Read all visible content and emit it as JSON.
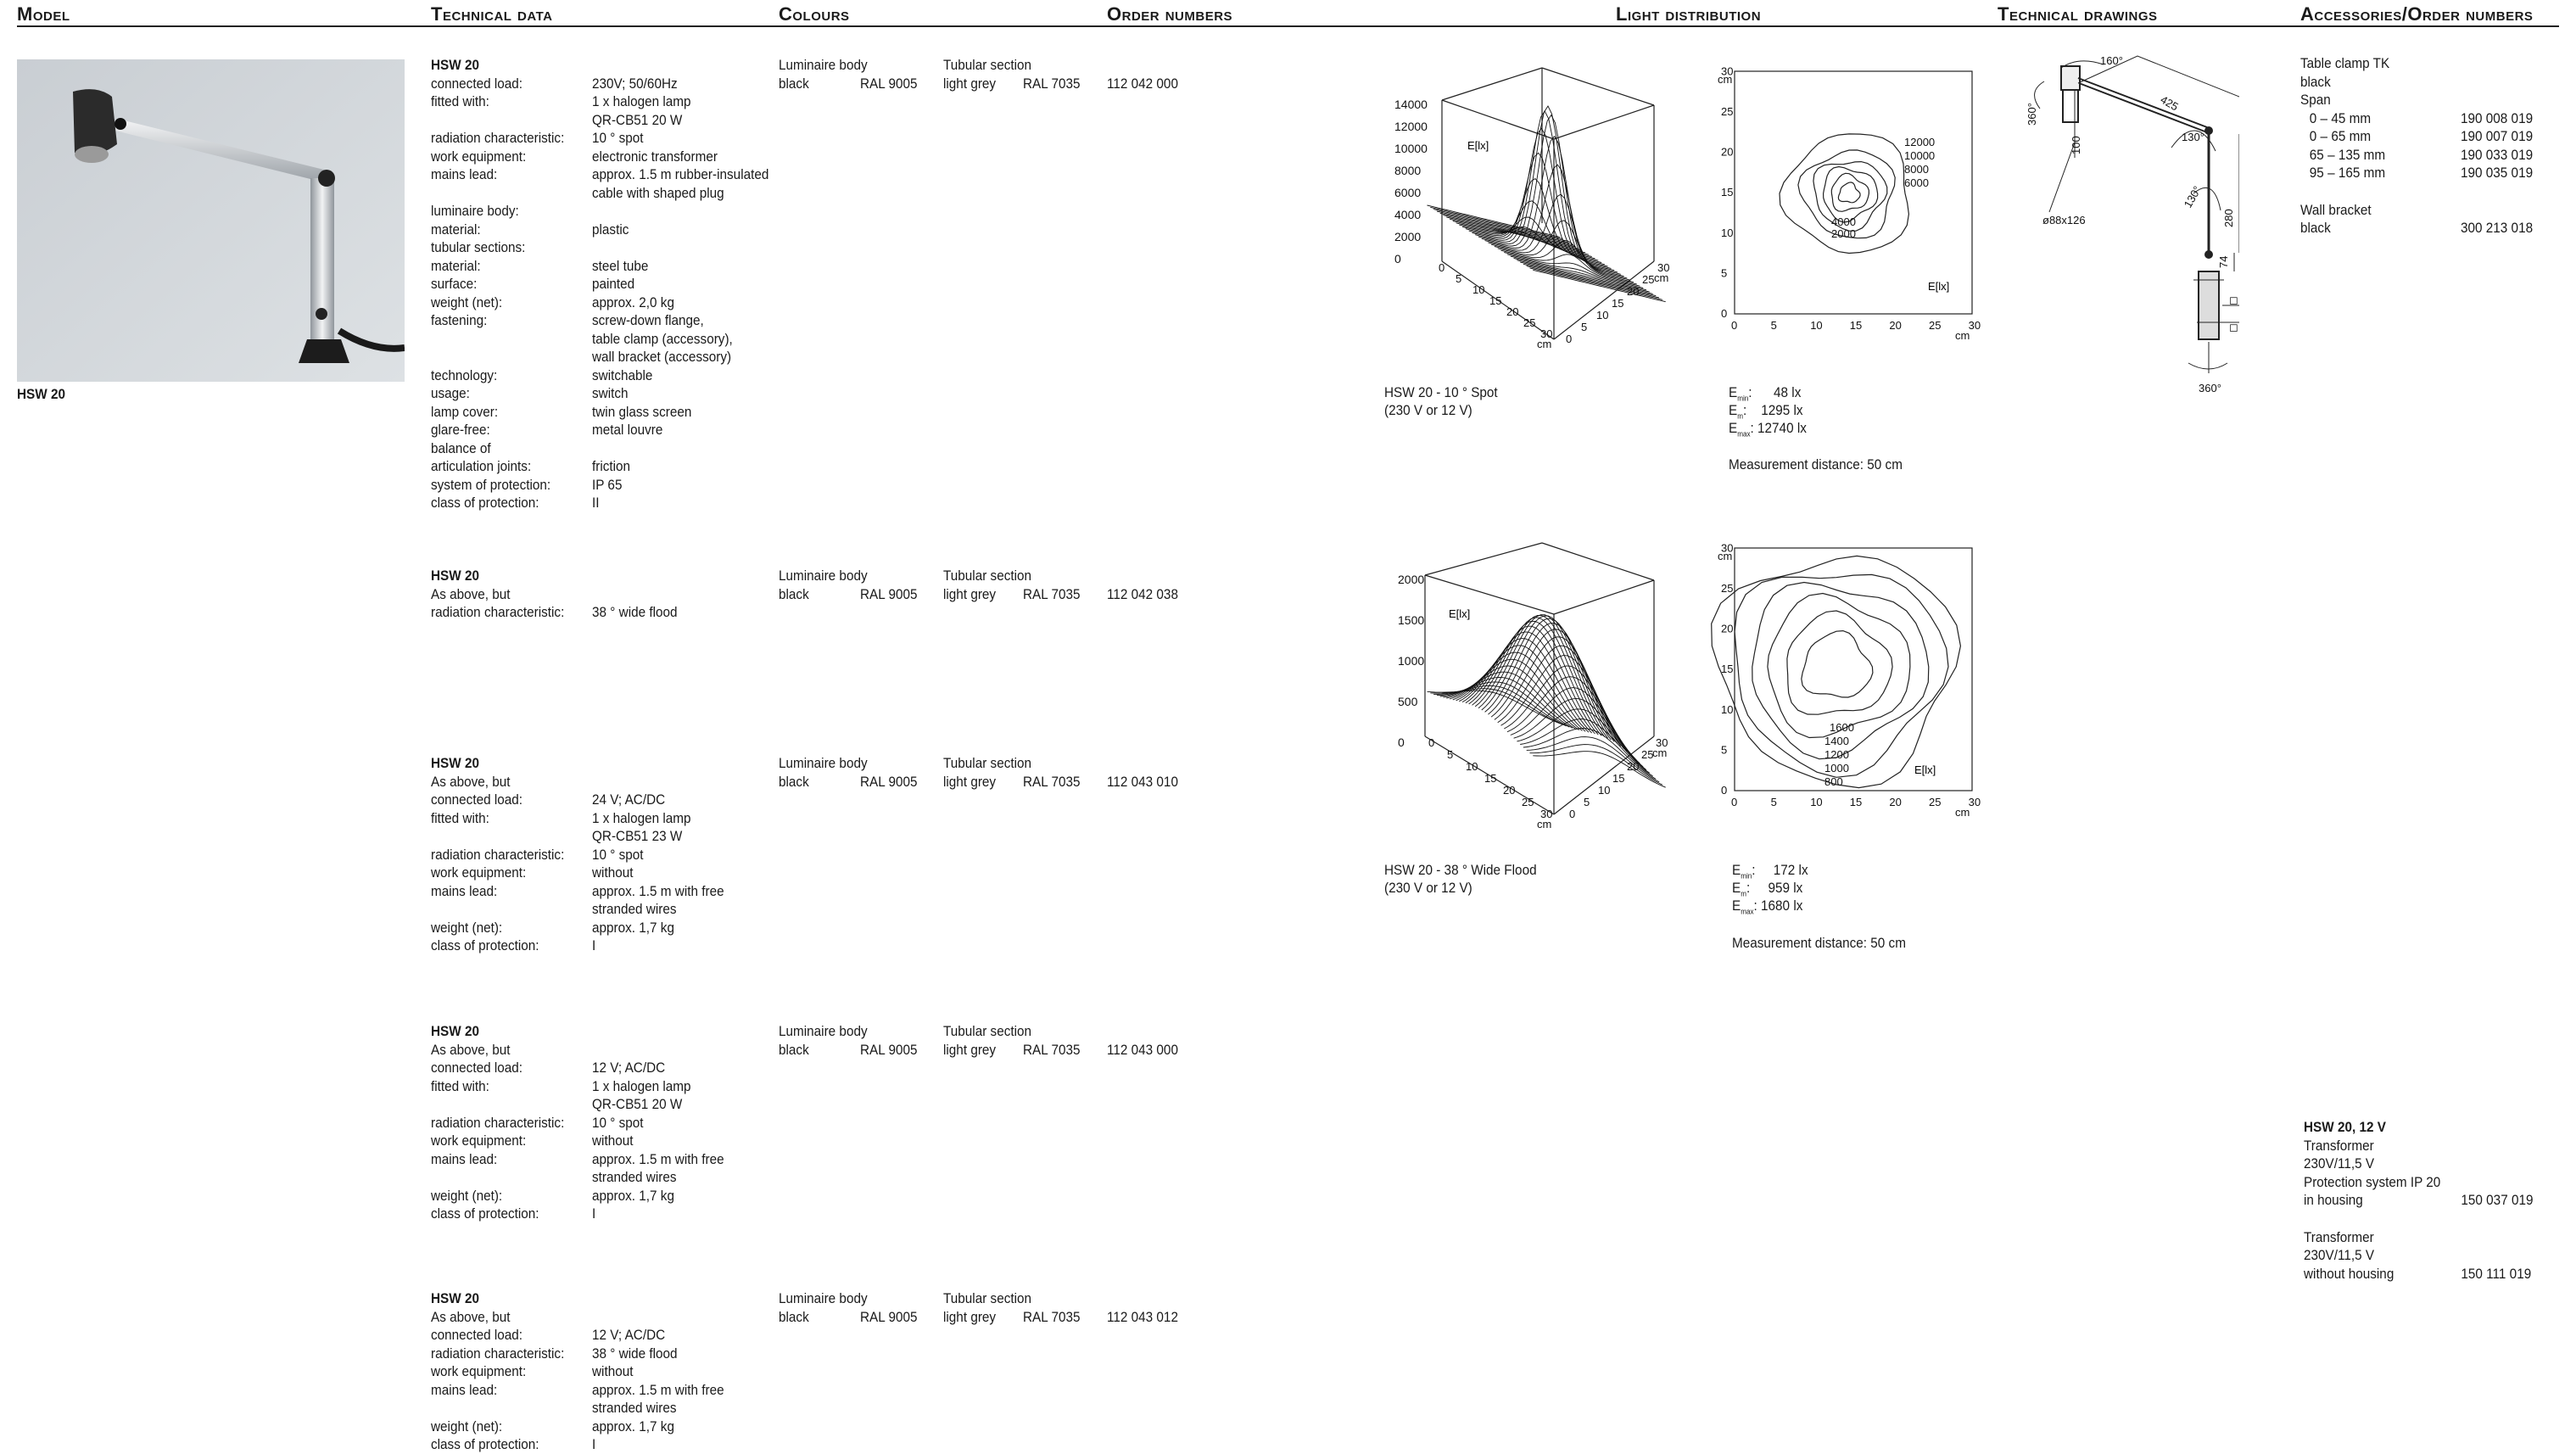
{
  "headers": {
    "model": "Model",
    "technical_data": "Technical data",
    "colours": "Colours",
    "order_numbers": "Order numbers",
    "light_distribution": "Light distribution",
    "technical_drawings": "Technical drawings",
    "accessories": "Accessories/Order numbers"
  },
  "model": {
    "label": "HSW 20"
  },
  "products": [
    {
      "title": "HSW 20",
      "rows": [
        [
          "connected load:",
          "230V; 50/60Hz"
        ],
        [
          "fitted with:",
          "1 x halogen lamp"
        ],
        [
          "",
          "QR-CB51 20 W"
        ],
        [
          "radiation characteristic:",
          "10 ° spot"
        ],
        [
          "work equipment:",
          "electronic transformer"
        ],
        [
          "mains lead:",
          "approx. 1.5 m rubber-insulated"
        ],
        [
          "",
          "cable with shaped plug"
        ],
        [
          "luminaire body:",
          ""
        ],
        [
          "material:",
          "plastic"
        ],
        [
          "tubular sections:",
          ""
        ],
        [
          "material:",
          "steel tube"
        ],
        [
          "surface:",
          "painted"
        ],
        [
          "weight (net):",
          "approx. 2,0 kg"
        ],
        [
          "fastening:",
          "screw-down flange,"
        ],
        [
          "",
          "table clamp (accessory),"
        ],
        [
          "",
          "wall bracket (accessory)"
        ],
        [
          "technology:",
          "switchable"
        ],
        [
          "usage:",
          "switch"
        ],
        [
          "lamp cover:",
          "twin glass screen"
        ],
        [
          "glare-free:",
          "metal louvre"
        ],
        [
          "balance of",
          ""
        ],
        [
          "articulation joints:",
          "friction"
        ],
        [
          "system of protection:",
          "IP 65"
        ],
        [
          "class of protection:",
          "II"
        ]
      ],
      "colour_body_label": "Luminaire body",
      "colour_body": "black",
      "ral_body": "RAL 9005",
      "colour_tube_label": "Tubular section",
      "colour_tube": "light grey",
      "ral_tube": "RAL 7035",
      "order": "112 042 000"
    },
    {
      "title": "HSW 20",
      "rows": [
        [
          "As above, but",
          ""
        ],
        [
          "radiation characteristic:",
          "38 ° wide flood"
        ]
      ],
      "colour_body_label": "Luminaire body",
      "colour_body": "black",
      "ral_body": "RAL 9005",
      "colour_tube_label": "Tubular section",
      "colour_tube": "light grey",
      "ral_tube": "RAL 7035",
      "order": "112 042 038"
    },
    {
      "title": "HSW 20",
      "rows": [
        [
          "As above, but",
          ""
        ],
        [
          "connected load:",
          "24 V; AC/DC"
        ],
        [
          "fitted with:",
          "1 x halogen lamp"
        ],
        [
          "",
          "QR-CB51 23 W"
        ],
        [
          "radiation characteristic:",
          "10 ° spot"
        ],
        [
          "work equipment:",
          "without"
        ],
        [
          "mains lead:",
          "approx. 1.5 m with free"
        ],
        [
          "",
          "stranded wires"
        ],
        [
          "weight (net):",
          "approx. 1,7 kg"
        ],
        [
          "class of protection:",
          "I"
        ]
      ],
      "colour_body_label": "Luminaire body",
      "colour_body": "black",
      "ral_body": "RAL 9005",
      "colour_tube_label": "Tubular section",
      "colour_tube": "light grey",
      "ral_tube": "RAL 7035",
      "order": "112 043 010"
    },
    {
      "title": "HSW 20",
      "rows": [
        [
          "As above, but",
          ""
        ],
        [
          "connected load:",
          "12 V; AC/DC"
        ],
        [
          "fitted with:",
          "1 x halogen lamp"
        ],
        [
          "",
          "QR-CB51 20 W"
        ],
        [
          "radiation characteristic:",
          "10 ° spot"
        ],
        [
          "work equipment:",
          "without"
        ],
        [
          "mains lead:",
          "approx. 1.5 m with free"
        ],
        [
          "",
          "stranded wires"
        ],
        [
          "weight (net):",
          "approx. 1,7 kg"
        ],
        [
          "class of protection:",
          "I"
        ]
      ],
      "colour_body_label": "Luminaire body",
      "colour_body": "black",
      "ral_body": "RAL 9005",
      "colour_tube_label": "Tubular section",
      "colour_tube": "light grey",
      "ral_tube": "RAL 7035",
      "order": "112 043 000"
    },
    {
      "title": "HSW 20",
      "rows": [
        [
          "As above, but",
          ""
        ],
        [
          "connected load:",
          "12 V; AC/DC"
        ],
        [
          "radiation characteristic:",
          "38 ° wide flood"
        ],
        [
          "work equipment:",
          "without"
        ],
        [
          "mains lead:",
          "approx. 1.5 m with free"
        ],
        [
          "",
          "stranded wires"
        ],
        [
          "weight (net):",
          "approx. 1,7 kg"
        ],
        [
          "class of protection:",
          "I"
        ]
      ],
      "colour_body_label": "Luminaire body",
      "colour_body": "black",
      "ral_body": "RAL 9005",
      "colour_tube_label": "Tubular section",
      "colour_tube": "light grey",
      "ral_tube": "RAL 7035",
      "order": "112 043 012"
    }
  ],
  "light": {
    "spot": {
      "caption1": "HSW 20 - 10 ° Spot",
      "caption2": "(230 V or 12 V)",
      "emin": "48 lx",
      "em": "1295 lx",
      "emax": "12740 lx",
      "e_sym": "E",
      "sub_min": "min",
      "sub_m": "m",
      "sub_max": "max",
      "distance": "Measurement distance: 50 cm",
      "surf_ticks": [
        "14000",
        "12000",
        "10000",
        "8000",
        "6000",
        "4000",
        "2000",
        "0"
      ],
      "axis_label": "E[lx]",
      "grid_ticks": [
        "0",
        "5",
        "10",
        "15",
        "20",
        "25",
        "30"
      ],
      "unit": "cm",
      "contours": [
        "12000",
        "10000",
        "8000",
        "6000",
        "4000",
        "2000"
      ]
    },
    "flood": {
      "caption1": "HSW 20 - 38 ° Wide Flood",
      "caption2": "(230 V or 12 V)",
      "emin": "172 lx",
      "em": "959 lx",
      "emax": "1680 lx",
      "distance": "Measurement distance: 50 cm",
      "surf_ticks": [
        "2000",
        "1500",
        "1000",
        "500",
        "0"
      ],
      "contours": [
        "1600",
        "1400",
        "1200",
        "1000",
        "800"
      ]
    }
  },
  "drawing": {
    "dims": [
      "160°",
      "425",
      "360°",
      "130°",
      "100",
      "130°",
      "280",
      "74",
      "ø88x126",
      "◻ 45/ø6",
      "◻ 60",
      "360°"
    ]
  },
  "accessories": {
    "clamp": "Table clamp TK",
    "clamp_colour": "black",
    "span": "Span",
    "spans": [
      [
        "0 –   45 mm",
        "190 008 019"
      ],
      [
        "0 –   65 mm",
        "190 007 019"
      ],
      [
        "65 – 135 mm",
        "190 033 019"
      ],
      [
        "95 – 165 mm",
        "190 035 019"
      ]
    ],
    "wall": "Wall bracket",
    "wall_colour": "black",
    "wall_order": "300 213 018",
    "hsw12_title": "HSW 20, 12 V",
    "t1": [
      "Transformer",
      "230V/11,5 V",
      "Protection system IP 20",
      "in housing"
    ],
    "t1_order": "150 037 019",
    "t2": [
      "Transformer",
      "230V/11,5 V",
      "without housing"
    ],
    "t2_order": "150 111 019"
  }
}
